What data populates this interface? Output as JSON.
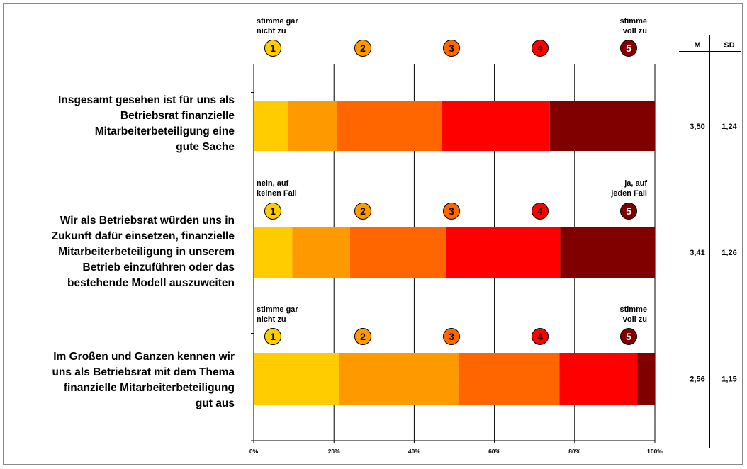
{
  "chart_data": {
    "type": "bar",
    "stacked": true,
    "orientation": "horizontal",
    "x_ticks": [
      "0%",
      "20%",
      "40%",
      "60%",
      "80%",
      "100%"
    ],
    "xlim": [
      0,
      100
    ],
    "grid": true,
    "scale_colors": [
      "#FFCC00",
      "#FF9900",
      "#FF6600",
      "#FF0000",
      "#800000"
    ],
    "scale_points": [
      "1",
      "2",
      "3",
      "4",
      "5"
    ],
    "stats_headers": {
      "m": "M",
      "sd": "SD"
    },
    "items": [
      {
        "label": [
          "Insgesamt gesehen ist für uns als",
          "Betriebsrat finanzielle",
          "Mitarbeiterbeteiligung eine",
          "gute Sache"
        ],
        "anchor_low": [
          "stimme gar",
          "nicht zu"
        ],
        "anchor_high": [
          "stimme",
          "voll zu"
        ],
        "values": [
          8.6,
          12.2,
          26.2,
          26.8,
          26.2
        ],
        "m": "3,50",
        "sd": "1,24"
      },
      {
        "label": [
          "Wir als Betriebsrat würden uns in",
          "Zukunft dafür einsetzen, finanzielle",
          "Mitarbeiterbeteiligung in unserem",
          "Betrieb einzuführen oder das",
          "bestehende Modell auszuweiten"
        ],
        "anchor_low": [
          "nein, auf",
          "keinen Fall"
        ],
        "anchor_high": [
          "ja, auf",
          "jeden Fall"
        ],
        "values": [
          9.6,
          14.4,
          24.0,
          28.4,
          23.6
        ],
        "m": "3,41",
        "sd": "1,26"
      },
      {
        "label": [
          "Im Großen und Ganzen kennen wir",
          "uns als Betriebsrat mit dem Thema",
          "finanzielle Mitarbeiterbeteiligung",
          "gut aus"
        ],
        "anchor_low": [
          "stimme gar",
          "nicht zu"
        ],
        "anchor_high": [
          "stimme",
          "voll zu"
        ],
        "values": [
          21.2,
          29.8,
          25.2,
          19.4,
          4.4
        ],
        "m": "2,56",
        "sd": "1,15"
      }
    ]
  }
}
